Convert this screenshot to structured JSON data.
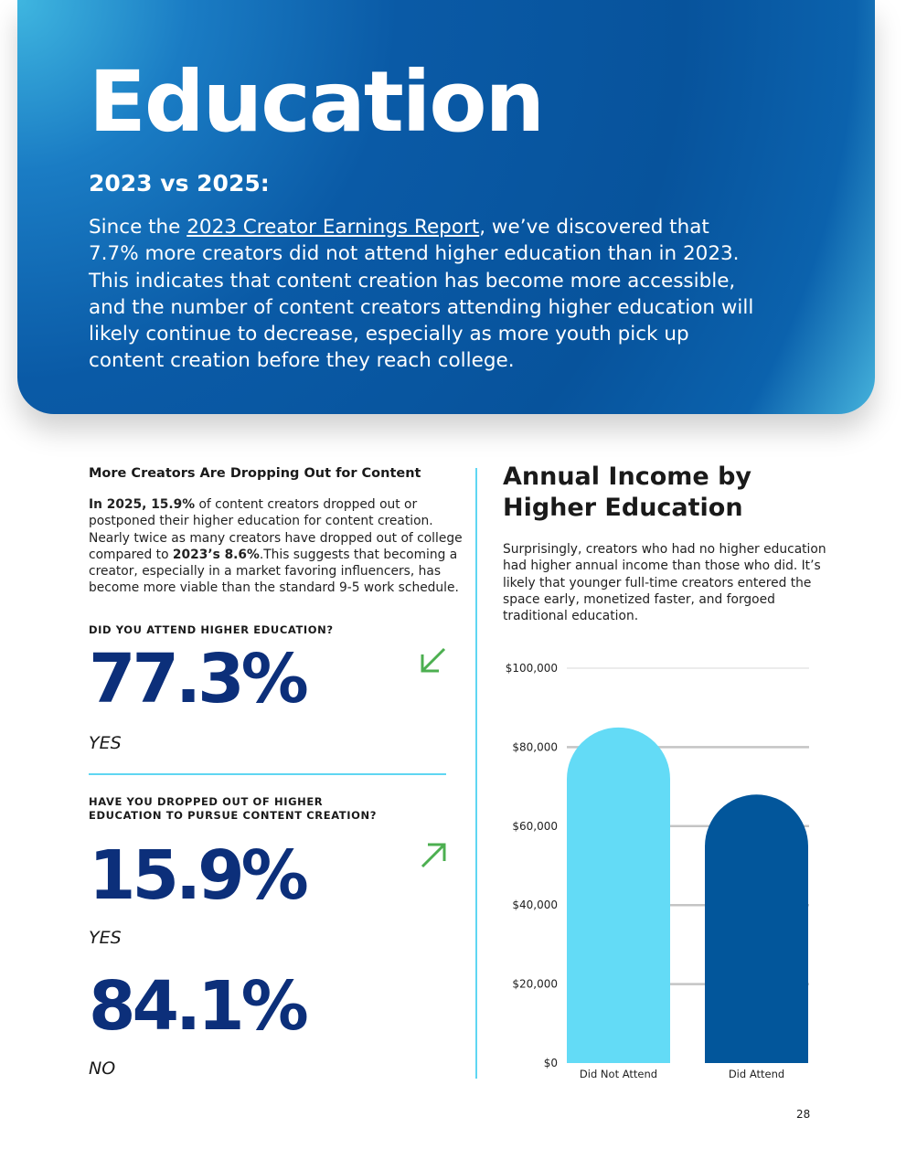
{
  "header": {
    "title": "Education",
    "subtitle": "2023 vs 2025:",
    "intro_pre": "Since the ",
    "intro_link": "2023 Creator Earnings Report",
    "intro_post": ", we’ve discovered that 7.7% more creators did not attend higher education than in 2023. This indicates that content creation has become more accessible, and the number of content creators attending higher education will likely continue to decrease, especially as more youth pick up content creation before they reach college."
  },
  "left": {
    "heading": "More Creators Are Dropping Out for Content",
    "para_bold": "In 2025, 15.9%",
    "para_mid": " of content creators dropped out or postponed their higher education for content creation. Nearly twice as many creators have dropped out of college compared to ",
    "para_bold2": "2023’s 8.6%",
    "para_end": ".This suggests that becoming a creator, especially in a market favoring influencers, has become more viable than the standard 9-5 work schedule.",
    "q1": {
      "question": "DID YOU ATTEND HIGHER EDUCATION?",
      "value": "77.3%",
      "answer": "YES",
      "trend_icon": "arrow-down-left-icon"
    },
    "q2": {
      "question": "HAVE YOU DROPPED OUT OF HIGHER EDUCATION TO PURSUE CONTENT CREATION?",
      "value_yes": "15.9%",
      "answer_yes": "YES",
      "value_no": "84.1%",
      "answer_no": "NO",
      "trend_icon": "arrow-up-right-icon"
    },
    "accent": "#5fd6f2",
    "arrow_color": "#4caf50",
    "number_color": "#0c2f7a"
  },
  "right": {
    "heading": "Annual Income by Higher Education",
    "para": "Surprisingly, creators who had no higher education had higher annual income than those who did. It’s likely that younger full-time creators entered the space early, monetized faster, and forgoed traditional education."
  },
  "chart_data": {
    "type": "bar",
    "categories": [
      "Did Not Attend",
      "Did Attend"
    ],
    "values": [
      85000,
      68000
    ],
    "colors": [
      "#63dbf6",
      "#02569b"
    ],
    "ylim": [
      0,
      100000
    ],
    "yticks": [
      0,
      20000,
      40000,
      60000,
      80000,
      100000
    ],
    "ytick_labels": [
      "$0",
      "$20,000",
      "$40,000",
      "$60,000",
      "$80,000",
      "$100,000"
    ],
    "grid": true,
    "title": "",
    "xlabel": "",
    "ylabel": ""
  },
  "page_number": "28"
}
